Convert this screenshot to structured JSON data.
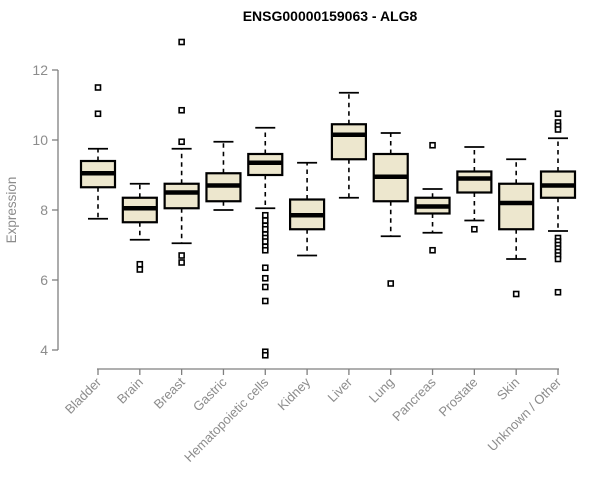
{
  "chart_data": {
    "type": "boxplot",
    "title": "ENSG00000159063 - ALG8",
    "ylabel": "Expression",
    "xlabel": "",
    "ylim": [
      4,
      12
    ],
    "yticks": [
      4,
      6,
      8,
      10,
      12
    ],
    "grid": false,
    "legend": "none",
    "categories": [
      "Bladder",
      "Brain",
      "Breast",
      "Gastric",
      "Hematopoietic cells",
      "Kidney",
      "Liver",
      "Lung",
      "Pancreas",
      "Prostate",
      "Skin",
      "Unknown / Other"
    ],
    "series": [
      {
        "category": "Bladder",
        "whisker_low": 7.75,
        "q1": 8.65,
        "median": 9.05,
        "q3": 9.4,
        "whisker_high": 9.75,
        "outliers": [
          10.75,
          11.5
        ]
      },
      {
        "category": "Brain",
        "whisker_low": 7.15,
        "q1": 7.65,
        "median": 8.05,
        "q3": 8.35,
        "whisker_high": 8.75,
        "outliers": [
          6.45,
          6.3
        ]
      },
      {
        "category": "Breast",
        "whisker_low": 7.05,
        "q1": 8.05,
        "median": 8.5,
        "q3": 8.75,
        "whisker_high": 9.75,
        "outliers": [
          12.8,
          10.85,
          9.95,
          6.7,
          6.5
        ]
      },
      {
        "category": "Gastric",
        "whisker_low": 8.0,
        "q1": 8.25,
        "median": 8.7,
        "q3": 9.05,
        "whisker_high": 9.95,
        "outliers": []
      },
      {
        "category": "Hematopoietic cells",
        "whisker_low": 8.05,
        "q1": 9.0,
        "median": 9.35,
        "q3": 9.6,
        "whisker_high": 10.35,
        "outliers": [
          7.85,
          7.7,
          7.55,
          7.45,
          7.3,
          7.2,
          7.1,
          6.95,
          6.85,
          6.35,
          6.05,
          5.8,
          5.4,
          3.95,
          3.85
        ]
      },
      {
        "category": "Kidney",
        "whisker_low": 6.7,
        "q1": 7.45,
        "median": 7.85,
        "q3": 8.3,
        "whisker_high": 9.35,
        "outliers": []
      },
      {
        "category": "Liver",
        "whisker_low": 8.35,
        "q1": 9.45,
        "median": 10.15,
        "q3": 10.45,
        "whisker_high": 11.35,
        "outliers": []
      },
      {
        "category": "Lung",
        "whisker_low": 7.25,
        "q1": 8.25,
        "median": 8.95,
        "q3": 9.6,
        "whisker_high": 10.2,
        "outliers": [
          5.9
        ]
      },
      {
        "category": "Pancreas",
        "whisker_low": 7.35,
        "q1": 7.9,
        "median": 8.1,
        "q3": 8.35,
        "whisker_high": 8.6,
        "outliers": [
          9.85,
          6.85
        ]
      },
      {
        "category": "Prostate",
        "whisker_low": 7.7,
        "q1": 8.5,
        "median": 8.9,
        "q3": 9.1,
        "whisker_high": 9.8,
        "outliers": [
          7.45
        ]
      },
      {
        "category": "Skin",
        "whisker_low": 6.6,
        "q1": 7.45,
        "median": 8.2,
        "q3": 8.75,
        "whisker_high": 9.45,
        "outliers": [
          5.6
        ]
      },
      {
        "category": "Unknown / Other",
        "whisker_low": 7.4,
        "q1": 8.35,
        "median": 8.7,
        "q3": 9.1,
        "whisker_high": 10.05,
        "outliers": [
          10.75,
          10.5,
          10.4,
          10.3,
          7.2,
          7.1,
          7.0,
          6.9,
          6.8,
          6.7,
          6.6,
          5.65
        ]
      }
    ],
    "colors": {
      "box_fill": "#EDE7CE",
      "box_border": "#000000",
      "median": "#000000",
      "whisker": "#000000",
      "outlier_fill": "#ffffff",
      "axis": "#7f7f7f",
      "tick_label": "#8c8c8c",
      "title": "#000000"
    }
  }
}
